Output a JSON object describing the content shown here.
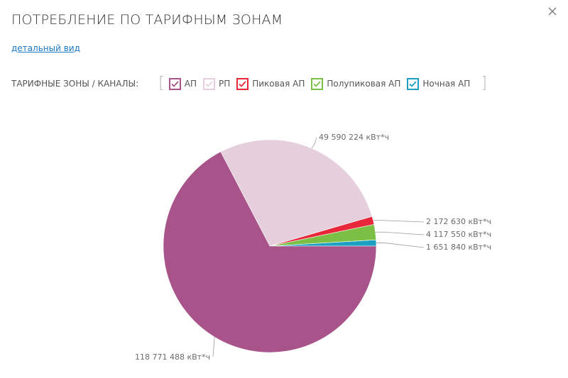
{
  "header": {
    "title": "ПОТРЕБЛЕНИЕ ПО ТАРИФНЫМ ЗОНАМ",
    "detail_link": "детальный вид"
  },
  "legend": {
    "label": "ТАРИФНЫЕ ЗОНЫ / КАНАЛЫ:",
    "items": [
      {
        "label": "АП",
        "color": "#a8538a",
        "checked": true
      },
      {
        "label": "РП",
        "color": "#e6cfdd",
        "checked": true
      },
      {
        "label": "Пиковая АП",
        "color": "#e8273a",
        "checked": true
      },
      {
        "label": "Полупиковая АП",
        "color": "#7bbf44",
        "checked": true
      },
      {
        "label": "Ночная АП",
        "color": "#1ba0c1",
        "checked": true
      }
    ]
  },
  "chart_data": {
    "type": "pie",
    "slices": [
      {
        "name": "АП",
        "value": 118771488,
        "label": "118 771 488 кВт*ч",
        "color": "#a8538a"
      },
      {
        "name": "РП",
        "value": 49590224,
        "label": "49 590 224 кВт*ч",
        "color": "#e6cfdd"
      },
      {
        "name": "Пиковая АП",
        "value": 2172630,
        "label": "2 172 630 кВт*ч",
        "color": "#e8273a"
      },
      {
        "name": "Полупиковая АП",
        "value": 4117550,
        "label": "4 117 550 кВт*ч",
        "color": "#7bbf44"
      },
      {
        "name": "Ночная АП",
        "value": 1651840,
        "label": "1 651 840 кВт*ч",
        "color": "#1ba0c1"
      }
    ]
  }
}
